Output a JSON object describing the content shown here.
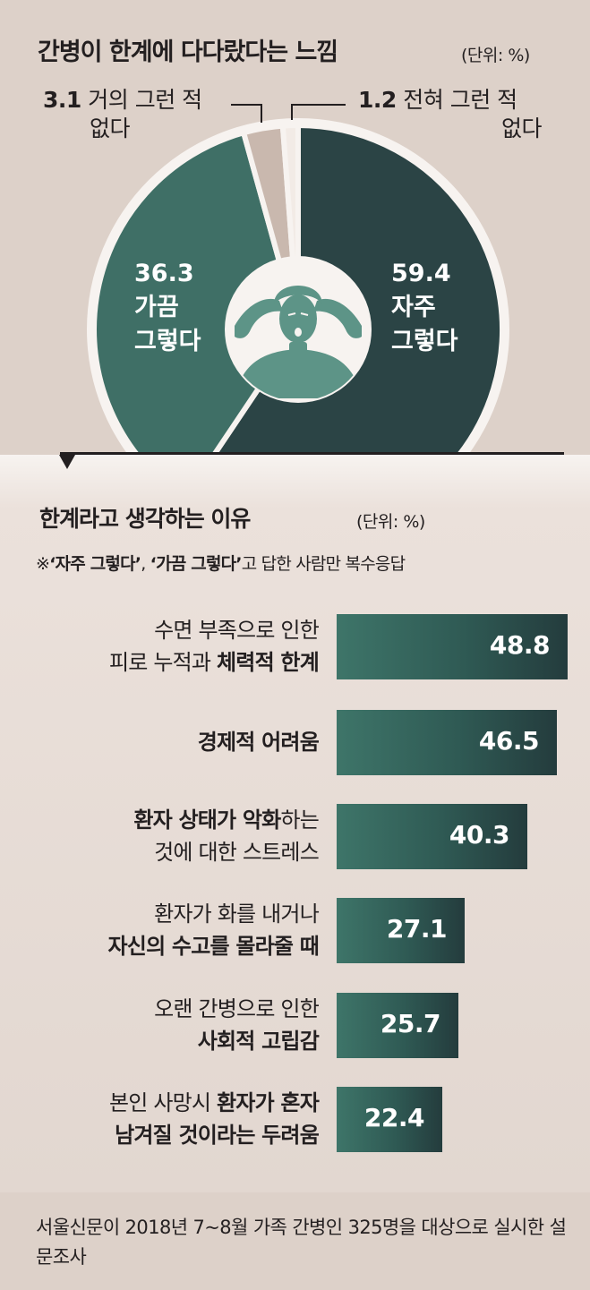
{
  "chart_data": [
    {
      "type": "pie",
      "title": "간병이 한계에 다다랐다는 느낌",
      "unit": "(단위: %)",
      "slices": [
        {
          "label_lines": [
            "자주",
            "그렇다"
          ],
          "value": 59.4,
          "value_text": "59.4",
          "color": "#2b4445"
        },
        {
          "label_lines": [
            "가끔",
            "그렇다"
          ],
          "value": 36.3,
          "value_text": "36.3",
          "color": "#3f6f66"
        },
        {
          "label_lines": [
            "거의 그런 적",
            "없다"
          ],
          "value": 3.1,
          "value_text": "3.1",
          "color": "#c9b8ae"
        },
        {
          "label_lines": [
            "전혀 그런 적",
            "없다"
          ],
          "value": 1.2,
          "value_text": "1.2",
          "color": "#f2ebe6"
        }
      ]
    },
    {
      "type": "bar",
      "title": "한계라고 생각하는 이유",
      "unit": "(단위: %)",
      "note_prefix": "※",
      "note_bold1": "‘자주 그렇다’",
      "note_sep": ",  ",
      "note_bold2": "‘가끔 그렇다’",
      "note_rest": "고 답한 사람만 복수응답",
      "categories": [
        "수면 부족으로 인한 피로 누적과 체력적 한계",
        "경제적 어려움",
        "환자 상태가 악화하는 것에 대한 스트레스",
        "환자가 화를 내거나 자신의 수고를 몰라줄 때",
        "오랜 간병으로 인한 사회적 고립감",
        "본인 사망시 환자가 혼자 남겨질 것이라는 두려움"
      ],
      "values": [
        48.8,
        46.5,
        40.3,
        27.1,
        25.7,
        22.4
      ],
      "xlim": [
        0,
        48.8
      ],
      "bar_color": "#2f5a54"
    }
  ],
  "labels": {
    "pie": {
      "callout_left": {
        "num": "3.1",
        "line1": " 거의 그런 적",
        "line2": "없다"
      },
      "callout_right": {
        "num": "1.2",
        "line1": " 전혀 그런 적",
        "line2": "없다"
      }
    },
    "bars": [
      {
        "lines": [
          [
            {
              "t": "수면 부족으로 인한",
              "b": false
            }
          ],
          [
            {
              "t": "피로 누적과 ",
              "b": false
            },
            {
              "t": "체력적 한계",
              "b": true
            }
          ]
        ],
        "value_text": "48.8"
      },
      {
        "lines": [
          [
            {
              "t": "경제적 어려움",
              "b": true
            }
          ]
        ],
        "value_text": "46.5"
      },
      {
        "lines": [
          [
            {
              "t": "환자 상태가 악화",
              "b": true
            },
            {
              "t": "하는",
              "b": false
            }
          ],
          [
            {
              "t": "것에 대한 스트레스",
              "b": false
            }
          ]
        ],
        "value_text": "40.3"
      },
      {
        "lines": [
          [
            {
              "t": "환자가 화를 내거나",
              "b": false
            }
          ],
          [
            {
              "t": "자신의 수고를 몰라줄 때",
              "b": true
            }
          ]
        ],
        "value_text": "27.1"
      },
      {
        "lines": [
          [
            {
              "t": "오랜 간병으로 인한",
              "b": false
            }
          ],
          [
            {
              "t": "사회적 고립감",
              "b": true
            }
          ]
        ],
        "value_text": "25.7"
      },
      {
        "lines": [
          [
            {
              "t": "본인 사망시 ",
              "b": false
            },
            {
              "t": "환자가 혼자",
              "b": true
            }
          ],
          [
            {
              "t": "남겨질 것이라는 두려움",
              "b": true
            }
          ]
        ],
        "value_text": "22.4"
      }
    ]
  },
  "footer": {
    "source": "서울신문이 2018년 7~8월 가족 간병인 325명을 대상으로 실시한 설문조사"
  },
  "colors": {
    "background": "#ddd1c9",
    "dark_teal": "#2b4445",
    "mid_teal": "#3f6f66",
    "figure_teal": "#5d9487"
  },
  "icons": {
    "center": "stressed-person-holding-head-icon"
  }
}
